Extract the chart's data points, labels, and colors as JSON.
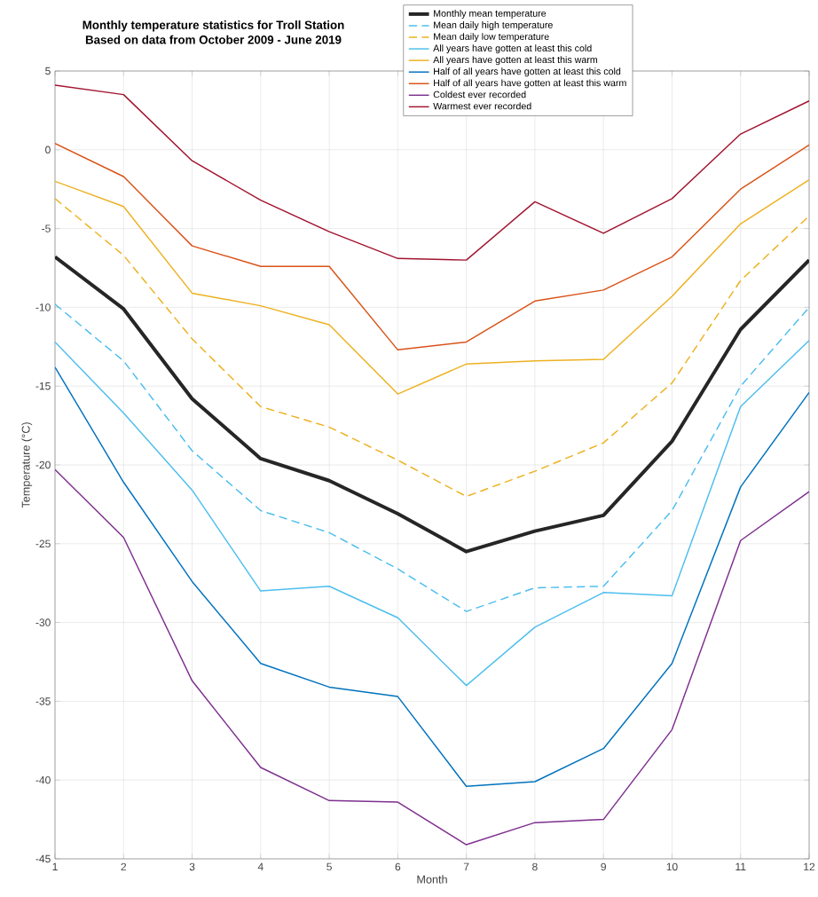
{
  "chart_data": {
    "type": "line",
    "title": "Monthly temperature statistics for Troll Station",
    "subtitle": "Based on data from October 2009 - June 2019",
    "xlabel": "Month",
    "ylabel": "Temperature (°C)",
    "x": [
      1,
      2,
      3,
      4,
      5,
      6,
      7,
      8,
      9,
      10,
      11,
      12
    ],
    "xlim": [
      1,
      12
    ],
    "xticks": [
      1,
      2,
      3,
      4,
      5,
      6,
      7,
      8,
      9,
      10,
      11,
      12
    ],
    "ylim": [
      -45,
      5
    ],
    "yticks": [
      -45,
      -40,
      -35,
      -30,
      -25,
      -20,
      -15,
      -10,
      -5,
      0,
      5
    ],
    "grid": true,
    "legend": "top",
    "marker": "none",
    "series": [
      {
        "name": "Monthly mean temperature",
        "color": "#262626",
        "line_style": "solid",
        "values": [
          -6.8,
          -10.1,
          -15.8,
          -19.6,
          -21.0,
          -23.1,
          -25.5,
          -24.2,
          -23.2,
          -18.5,
          -11.4,
          -7.0
        ]
      },
      {
        "name": "Mean daily high temperature",
        "color": "#4dbeee",
        "line_style": "dashed",
        "values": [
          -9.8,
          -13.4,
          -19.1,
          -22.9,
          -24.3,
          -26.6,
          -29.3,
          -27.8,
          -27.7,
          -22.9,
          -15.0,
          -10.0
        ]
      },
      {
        "name": "Mean daily low temperature",
        "color": "#edb120",
        "line_style": "dashed",
        "values": [
          -3.1,
          -6.7,
          -12.0,
          -16.3,
          -17.6,
          -19.7,
          -22.0,
          -20.4,
          -18.6,
          -14.8,
          -8.3,
          -4.2
        ]
      },
      {
        "name": "All years have gotten at least this cold",
        "color": "#4dbeee",
        "line_style": "solid",
        "values": [
          -12.2,
          -16.7,
          -21.6,
          -28.0,
          -27.7,
          -29.7,
          -34.0,
          -30.3,
          -28.1,
          -28.3,
          -16.3,
          -12.1
        ]
      },
      {
        "name": "All years have gotten at least this warm",
        "color": "#edb120",
        "line_style": "solid",
        "values": [
          -2.0,
          -3.6,
          -9.1,
          -9.9,
          -11.1,
          -15.5,
          -13.6,
          -13.4,
          -13.3,
          -9.3,
          -4.7,
          -1.9
        ]
      },
      {
        "name": "Half of all years have gotten at least this cold",
        "color": "#0072bd",
        "line_style": "solid",
        "values": [
          -13.8,
          -21.1,
          -27.4,
          -32.6,
          -34.1,
          -34.7,
          -40.4,
          -40.1,
          -38.0,
          -32.6,
          -21.4,
          -15.4
        ]
      },
      {
        "name": "Half of all years have gotten at least this warm",
        "color": "#d95319",
        "line_style": "solid",
        "values": [
          0.4,
          -1.7,
          -6.1,
          -7.4,
          -7.4,
          -12.7,
          -12.2,
          -9.6,
          -8.9,
          -6.8,
          -2.5,
          0.3
        ]
      },
      {
        "name": "Coldest ever recorded",
        "color": "#7e2f8e",
        "line_style": "solid",
        "values": [
          -20.3,
          -24.6,
          -33.7,
          -39.2,
          -41.3,
          -41.4,
          -44.1,
          -42.7,
          -42.5,
          -36.8,
          -24.8,
          -21.7
        ]
      },
      {
        "name": "Warmest ever recorded",
        "color": "#a2142f",
        "line_style": "solid",
        "values": [
          4.1,
          3.5,
          -0.7,
          -3.2,
          -5.2,
          -6.9,
          -7.0,
          -3.3,
          -5.3,
          -3.1,
          1.0,
          3.1
        ]
      }
    ]
  }
}
